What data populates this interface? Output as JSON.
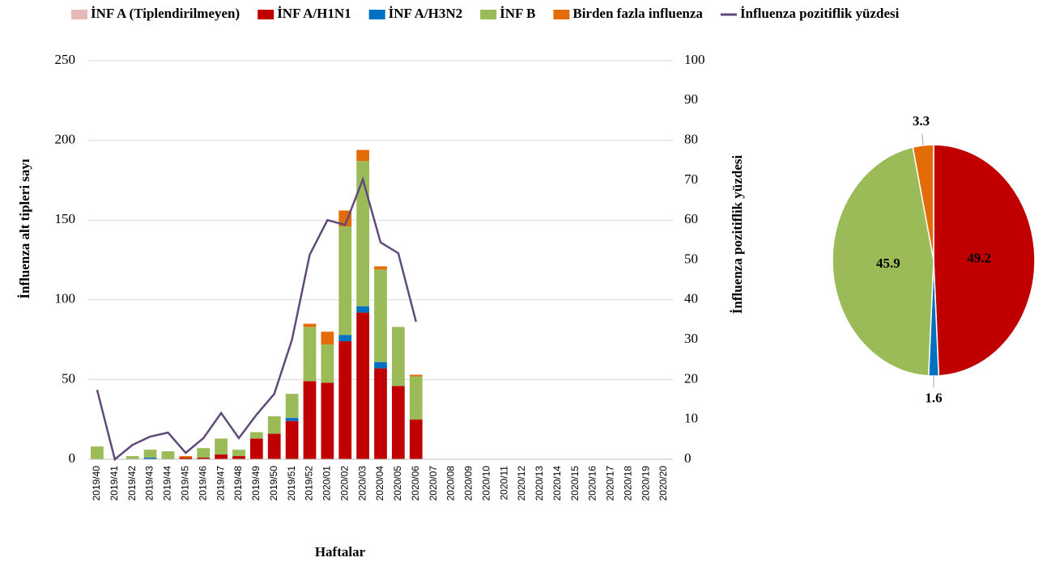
{
  "chart_data": [
    {
      "type": "bar",
      "stacked": true,
      "x_label": "Haftalar",
      "y_label": "İnfluenza alt tipleri sayı",
      "y2_label": "İnfluenza pozitiflik yüzdesi",
      "categories": [
        "2019/40",
        "2019/41",
        "2019/42",
        "2019/43",
        "2019/44",
        "2019/45",
        "2019/46",
        "2019/47",
        "2019/48",
        "2019/49",
        "2019/50",
        "2019/51",
        "2019/52",
        "2020/01",
        "2020/02",
        "2020/03",
        "2020/04",
        "2020/05",
        "2020/06",
        "2020/07",
        "2020/08",
        "2020/09",
        "2020/10",
        "2020/11",
        "2020/12",
        "2020/13",
        "2020/14",
        "2020/15",
        "2020/16",
        "2020/17",
        "2020/18",
        "2020/19",
        "2020/20"
      ],
      "series": [
        {
          "name": "İNF A (Tiplendirilmeyen)",
          "color": "#e6b9b8",
          "values": [
            0,
            0,
            0,
            0,
            0,
            0,
            0,
            0,
            0,
            0,
            0,
            0,
            0,
            0,
            0,
            0,
            0,
            0,
            0,
            null,
            null,
            null,
            null,
            null,
            null,
            null,
            null,
            null,
            null,
            null,
            null,
            null,
            null
          ]
        },
        {
          "name": "İNF A/H1N1",
          "color": "#c00000",
          "values": [
            0,
            0,
            0,
            0,
            0,
            1,
            1,
            3,
            2,
            13,
            16,
            24,
            49,
            48,
            74,
            92,
            57,
            46,
            25,
            null,
            null,
            null,
            null,
            null,
            null,
            null,
            null,
            null,
            null,
            null,
            null,
            null,
            null
          ]
        },
        {
          "name": "İNF A/H3N2",
          "color": "#0070c0",
          "values": [
            0,
            0,
            0,
            1,
            0,
            0,
            0,
            0,
            0,
            0,
            0,
            2,
            0,
            0,
            4,
            4,
            4,
            0,
            0,
            null,
            null,
            null,
            null,
            null,
            null,
            null,
            null,
            null,
            null,
            null,
            null,
            null,
            null
          ]
        },
        {
          "name": "İNF B",
          "color": "#9bbb59",
          "values": [
            8,
            0,
            2,
            5,
            5,
            0,
            6,
            10,
            4,
            4,
            11,
            15,
            34,
            24,
            68,
            91,
            58,
            37,
            27,
            null,
            null,
            null,
            null,
            null,
            null,
            null,
            null,
            null,
            null,
            null,
            null,
            null,
            null
          ]
        },
        {
          "name": "Birden fazla influenza",
          "color": "#e36c09",
          "values": [
            0,
            0,
            0,
            0,
            0,
            1,
            0,
            0,
            0,
            0,
            0,
            0,
            2,
            8,
            10,
            7,
            2,
            0,
            1,
            null,
            null,
            null,
            null,
            null,
            null,
            null,
            null,
            null,
            null,
            null,
            null,
            null,
            null
          ]
        },
        {
          "name": "İnfluenza pozitiflik yüzdesi",
          "type": "line",
          "axis": "y2",
          "color": "#604a7b",
          "values": [
            17.4,
            0,
            3.6,
            5.7,
            6.7,
            1.6,
            5.3,
            11.6,
            5.3,
            11.2,
            16.4,
            30,
            51.3,
            60,
            58.8,
            70.2,
            54.4,
            51.7,
            34.5,
            null,
            null,
            null,
            null,
            null,
            null,
            null,
            null,
            null,
            null,
            null,
            null,
            null,
            null
          ]
        }
      ],
      "ylim": [
        0,
        250
      ],
      "yticks": [
        0,
        50,
        100,
        150,
        200,
        250
      ],
      "y2lim": [
        0,
        100
      ],
      "y2ticks": [
        0,
        10,
        20,
        30,
        40,
        50,
        60,
        70,
        80,
        90,
        100
      ],
      "grid": true,
      "legend": "top"
    },
    {
      "type": "pie",
      "values": [
        49.2,
        1.6,
        45.9,
        3.3
      ],
      "colors": [
        "#c00000",
        "#0070c0",
        "#9bbb59",
        "#e36c09"
      ]
    }
  ]
}
